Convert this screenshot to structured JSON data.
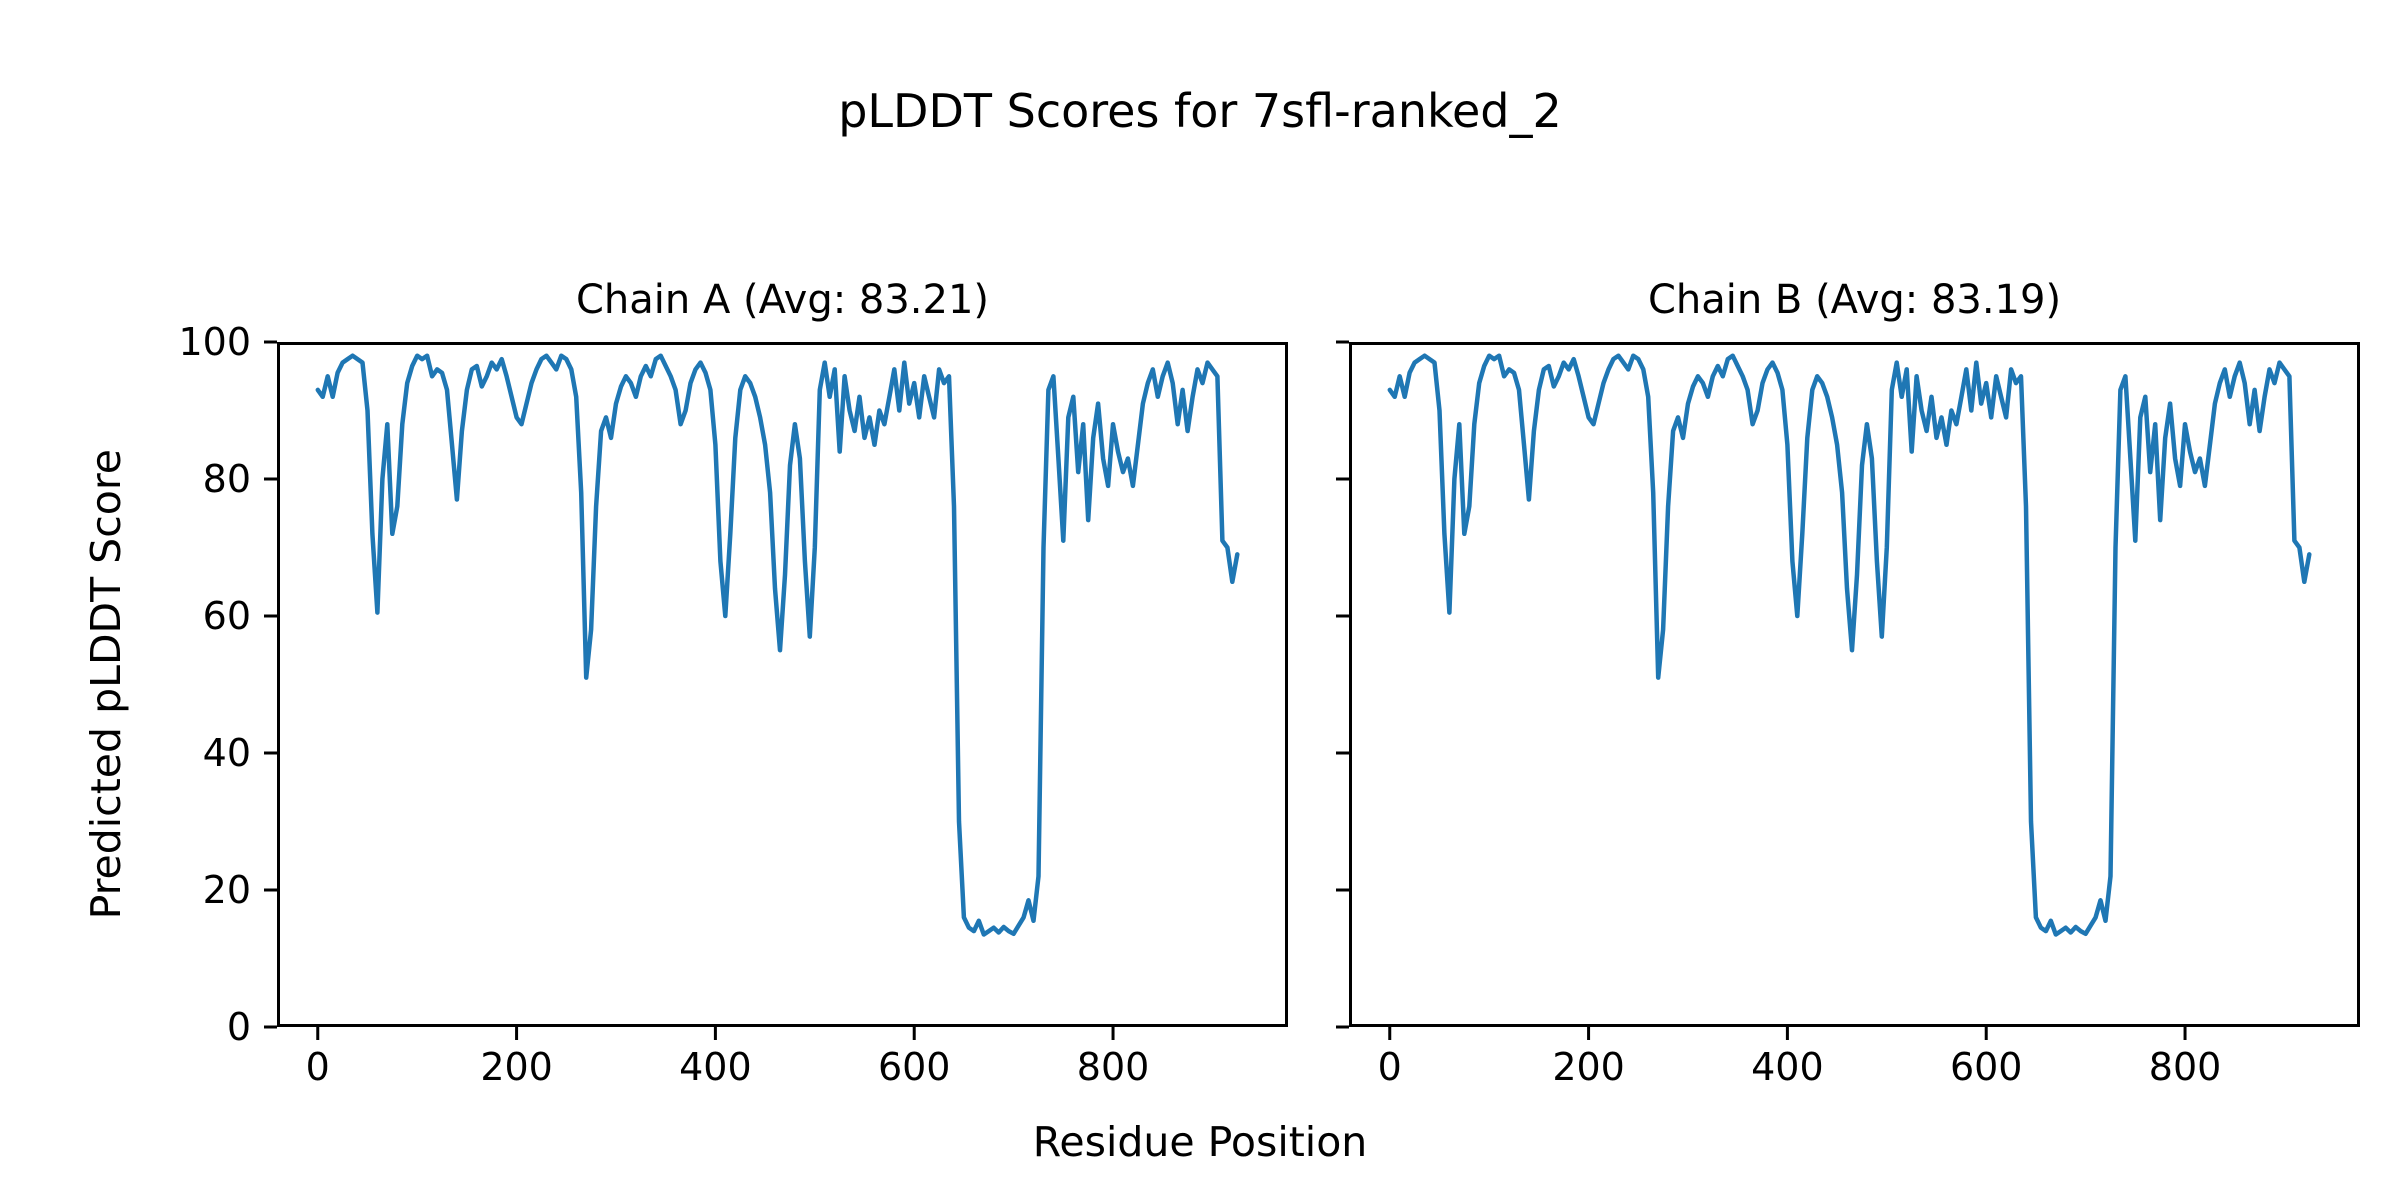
{
  "figure": {
    "title": "pLDDT Scores for 7sfl-ranked_2",
    "xlabel": "Residue Position",
    "ylabel": "Predicted pLDDT Score",
    "background_color": "#ffffff",
    "text_color": "#000000",
    "spine_color": "#000000"
  },
  "chart_data": [
    {
      "type": "line",
      "title": "Chain A (Avg: 83.21)",
      "series_name": "Chain A",
      "average_plddt": 83.21,
      "line_color": "#1f77b4",
      "xlabel": "Residue Position",
      "ylabel": "Predicted pLDDT Score",
      "xlim": [
        -41,
        976
      ],
      "ylim": [
        0,
        100
      ],
      "xticks": [
        0,
        200,
        400,
        600,
        800
      ],
      "yticks": [
        0,
        20,
        40,
        60,
        80,
        100
      ],
      "yticklabels_visible": true,
      "grid": false,
      "legend": null,
      "x_start": 0,
      "x_step": 5,
      "values": [
        93,
        92,
        95,
        92,
        95.5,
        97,
        97.5,
        98,
        97.5,
        97,
        90,
        72,
        60.5,
        80,
        88,
        72,
        76,
        88,
        94,
        96.5,
        98,
        97.5,
        98,
        95,
        96,
        95.5,
        93,
        85,
        77,
        87,
        93,
        96,
        96.5,
        93.5,
        95,
        97,
        96,
        97.5,
        95,
        92,
        89,
        88,
        91,
        94,
        96,
        97.5,
        98,
        97,
        96,
        98,
        97.5,
        96,
        92,
        78,
        51,
        58,
        76,
        87,
        89,
        86,
        91,
        93.5,
        95,
        94,
        92,
        95,
        96.5,
        95,
        97.5,
        98,
        96.5,
        95,
        93,
        88,
        90,
        94,
        96,
        97,
        95.5,
        93,
        85,
        68,
        60,
        72,
        86,
        93,
        95,
        94,
        92,
        89,
        85,
        78,
        64,
        55,
        66,
        82,
        88,
        83,
        68,
        57,
        70,
        93,
        97,
        92,
        96,
        84,
        95,
        90,
        87,
        92,
        86,
        89,
        85,
        90,
        88,
        92,
        96,
        90,
        97,
        91,
        94,
        89,
        95,
        92,
        89,
        96,
        94,
        95,
        76,
        30,
        16,
        14.5,
        14,
        15.5,
        13.5,
        14,
        14.5,
        13.8,
        14.6,
        14,
        13.6,
        14.8,
        16,
        18.5,
        15.5,
        22,
        70,
        93,
        95,
        83,
        71,
        89,
        92,
        81,
        88,
        74,
        86,
        91,
        83,
        79,
        88,
        84,
        81,
        83,
        79,
        85,
        91,
        94,
        96,
        92,
        95,
        97,
        94,
        88,
        93,
        87,
        92,
        96,
        94,
        97,
        96,
        95,
        71,
        70,
        65,
        69
      ]
    },
    {
      "type": "line",
      "title": "Chain B (Avg: 83.19)",
      "series_name": "Chain B",
      "average_plddt": 83.19,
      "line_color": "#1f77b4",
      "xlabel": "Residue Position",
      "ylabel": "Predicted pLDDT Score",
      "xlim": [
        -41,
        976
      ],
      "ylim": [
        0,
        100
      ],
      "xticks": [
        0,
        200,
        400,
        600,
        800
      ],
      "yticks": [
        0,
        20,
        40,
        60,
        80,
        100
      ],
      "yticklabels_visible": false,
      "grid": false,
      "legend": null,
      "x_start": 0,
      "x_step": 5,
      "values": [
        93,
        92,
        95,
        92,
        95.5,
        97,
        97.5,
        98,
        97.5,
        97,
        90,
        72,
        60.5,
        80,
        88,
        72,
        76,
        88,
        94,
        96.5,
        98,
        97.5,
        98,
        95,
        96,
        95.5,
        93,
        85,
        77,
        87,
        93,
        96,
        96.5,
        93.5,
        95,
        97,
        96,
        97.5,
        95,
        92,
        89,
        88,
        91,
        94,
        96,
        97.5,
        98,
        97,
        96,
        98,
        97.5,
        96,
        92,
        78,
        51,
        58,
        76,
        87,
        89,
        86,
        91,
        93.5,
        95,
        94,
        92,
        95,
        96.5,
        95,
        97.5,
        98,
        96.5,
        95,
        93,
        88,
        90,
        94,
        96,
        97,
        95.5,
        93,
        85,
        68,
        60,
        72,
        86,
        93,
        95,
        94,
        92,
        89,
        85,
        78,
        64,
        55,
        66,
        82,
        88,
        83,
        68,
        57,
        70,
        93,
        97,
        92,
        96,
        84,
        95,
        90,
        87,
        92,
        86,
        89,
        85,
        90,
        88,
        92,
        96,
        90,
        97,
        91,
        94,
        89,
        95,
        92,
        89,
        96,
        94,
        95,
        76,
        30,
        16,
        14.5,
        14,
        15.5,
        13.5,
        14,
        14.5,
        13.8,
        14.6,
        14,
        13.6,
        14.8,
        16,
        18.5,
        15.5,
        22,
        70,
        93,
        95,
        83,
        71,
        89,
        92,
        81,
        88,
        74,
        86,
        91,
        83,
        79,
        88,
        84,
        81,
        83,
        79,
        85,
        91,
        94,
        96,
        92,
        95,
        97,
        94,
        88,
        93,
        87,
        92,
        96,
        94,
        97,
        96,
        95,
        71,
        70,
        65,
        69
      ]
    }
  ]
}
